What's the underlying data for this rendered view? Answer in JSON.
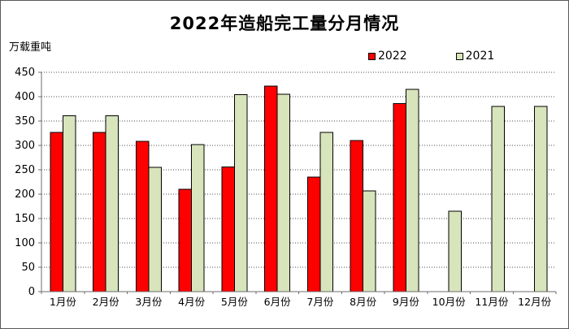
{
  "chart_data": {
    "type": "bar",
    "title": "2022年造船完工量分月情况",
    "ylabel": "万载重吨",
    "xlabel": "",
    "categories": [
      "1月份",
      "2月份",
      "3月份",
      "4月份",
      "5月份",
      "6月份",
      "7月份",
      "8月份",
      "9月份",
      "10月份",
      "11月份",
      "12月份"
    ],
    "series": [
      {
        "name": "2022",
        "color": "#FF0000",
        "values": [
          327,
          327,
          308,
          210,
          256,
          422,
          235,
          310,
          386,
          null,
          null,
          null
        ]
      },
      {
        "name": "2021",
        "color": "#D7E4BC",
        "values": [
          361,
          361,
          255,
          302,
          404,
          405,
          327,
          207,
          415,
          165,
          380,
          380
        ]
      }
    ],
    "ylim": [
      0,
      450
    ],
    "yticks": [
      0,
      50,
      100,
      150,
      200,
      250,
      300,
      350,
      400,
      450
    ],
    "grid": "horizontal-dotted",
    "legend_position": "top-right"
  }
}
